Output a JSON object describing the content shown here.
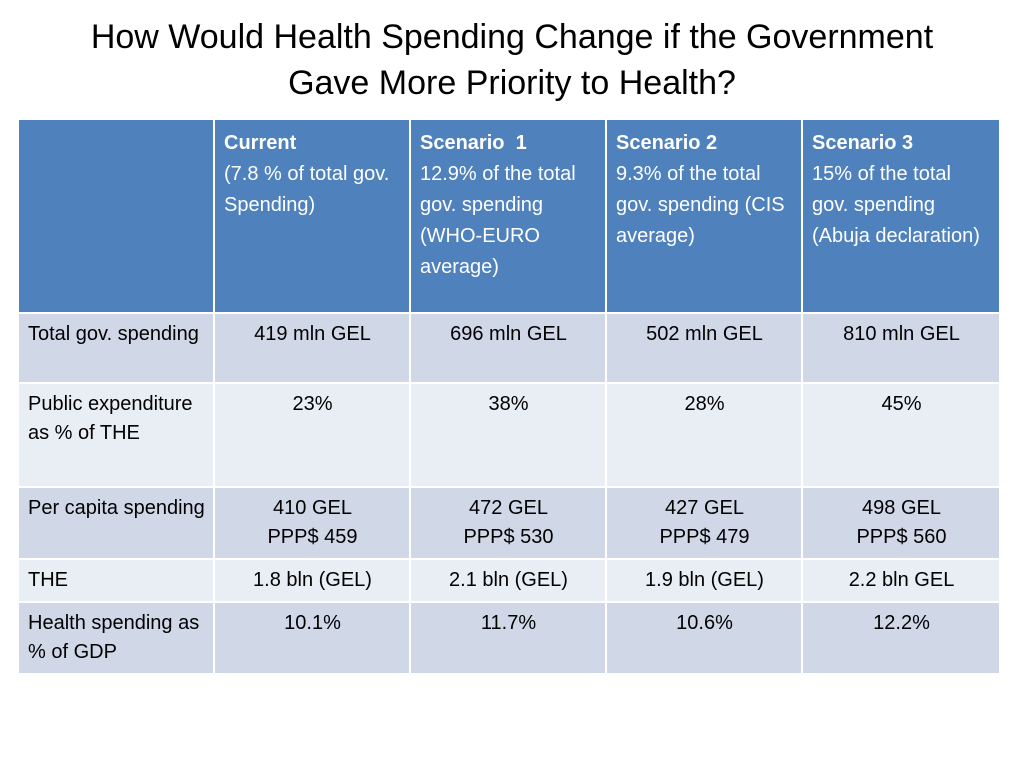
{
  "title": {
    "line1": "How Would Health Spending Change if the Government",
    "line2": "Gave More Priority to Health?"
  },
  "table": {
    "header": [
      {
        "title": "",
        "sub": ""
      },
      {
        "title": "Current",
        "sub": "(7.8 % of total gov. Spending)"
      },
      {
        "title": "Scenario  1",
        "sub": "12.9% of the total gov. spending (WHO-EURO average)"
      },
      {
        "title": "Scenario 2",
        "sub": "9.3% of the total gov. spending (CIS average)"
      },
      {
        "title": "Scenario 3",
        "sub": "15% of the total gov. spending (Abuja declaration)"
      }
    ],
    "rows": [
      {
        "label": "Total gov. spending",
        "values": [
          "419 mln GEL",
          "696 mln GEL",
          "502 mln GEL",
          "810 mln GEL"
        ]
      },
      {
        "label": "Public expenditure as % of THE",
        "values": [
          "23%",
          "38%",
          "28%",
          "45%"
        ]
      },
      {
        "label": "Per capita spending",
        "values": [
          "410 GEL",
          "472 GEL",
          "427 GEL",
          "498 GEL"
        ],
        "values2": [
          "PPP$ 459",
          "PPP$ 530",
          "PPP$ 479",
          "PPP$ 560"
        ]
      },
      {
        "label": "THE",
        "values": [
          "1.8 bln (GEL)",
          "2.1 bln (GEL)",
          "1.9 bln (GEL)",
          "2.2 bln GEL"
        ]
      },
      {
        "label": "Health spending as % of GDP",
        "values": [
          "10.1%",
          "11.7%",
          "10.6%",
          "12.2%"
        ]
      }
    ]
  }
}
